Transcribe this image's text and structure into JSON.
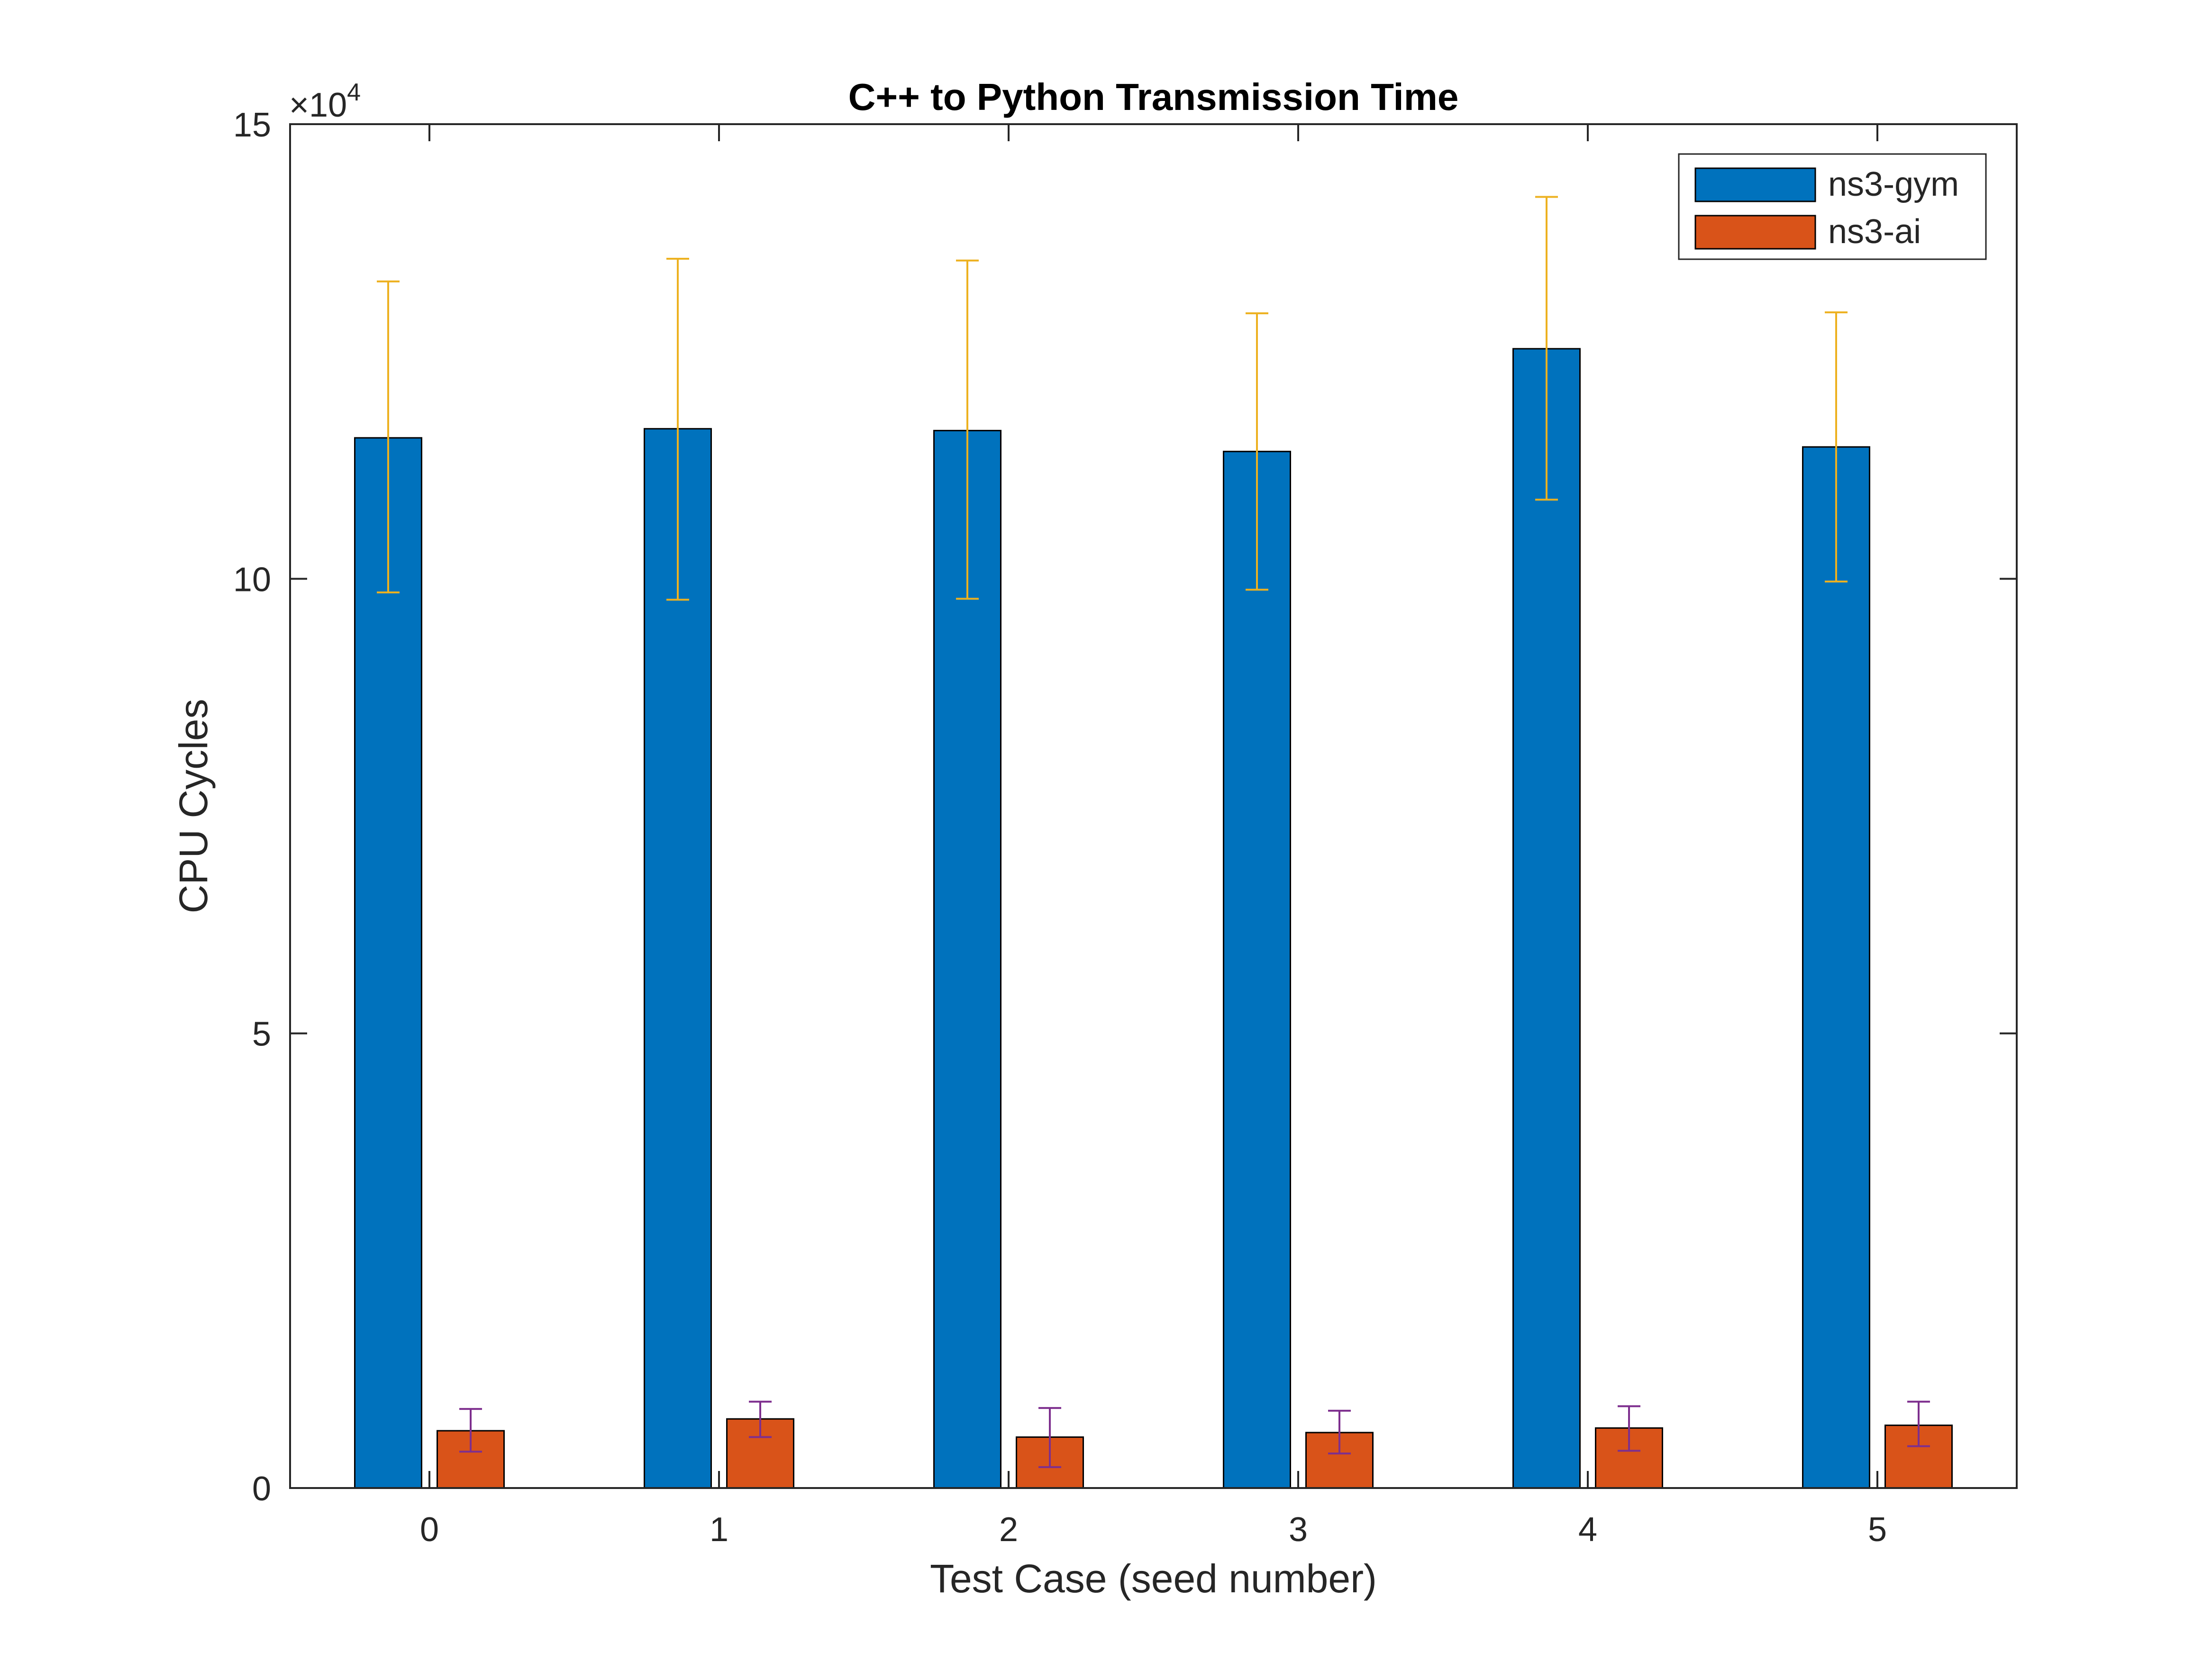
{
  "chart_data": {
    "type": "bar",
    "title": "C++ to Python Transmission Time",
    "xlabel": "Test Case (seed number)",
    "ylabel": "CPU Cycles",
    "exponent_base": "×10",
    "exponent_power": "4",
    "categories": [
      "0",
      "1",
      "2",
      "3",
      "4",
      "5"
    ],
    "ylim": [
      0,
      15
    ],
    "yticks": [
      0,
      5,
      10,
      15
    ],
    "ytick_labels": [
      "0",
      "5",
      "10",
      "15"
    ],
    "grid": false,
    "legend_position": "top-right",
    "series": [
      {
        "name": "ns3-gym",
        "color": "#0072BD",
        "errorbar_color": "#EDB120",
        "values": [
          11.55,
          11.65,
          11.63,
          11.4,
          12.53,
          11.45
        ],
        "error_low": [
          9.85,
          9.77,
          9.78,
          9.88,
          10.87,
          9.97
        ],
        "error_high": [
          13.27,
          13.52,
          13.5,
          12.92,
          14.2,
          12.93
        ]
      },
      {
        "name": "ns3-ai",
        "color": "#D95319",
        "errorbar_color": "#7E2F8E",
        "values": [
          0.63,
          0.76,
          0.56,
          0.61,
          0.66,
          0.69
        ],
        "error_low": [
          0.4,
          0.56,
          0.23,
          0.38,
          0.41,
          0.46
        ],
        "error_high": [
          0.87,
          0.95,
          0.88,
          0.85,
          0.9,
          0.95
        ]
      }
    ]
  }
}
